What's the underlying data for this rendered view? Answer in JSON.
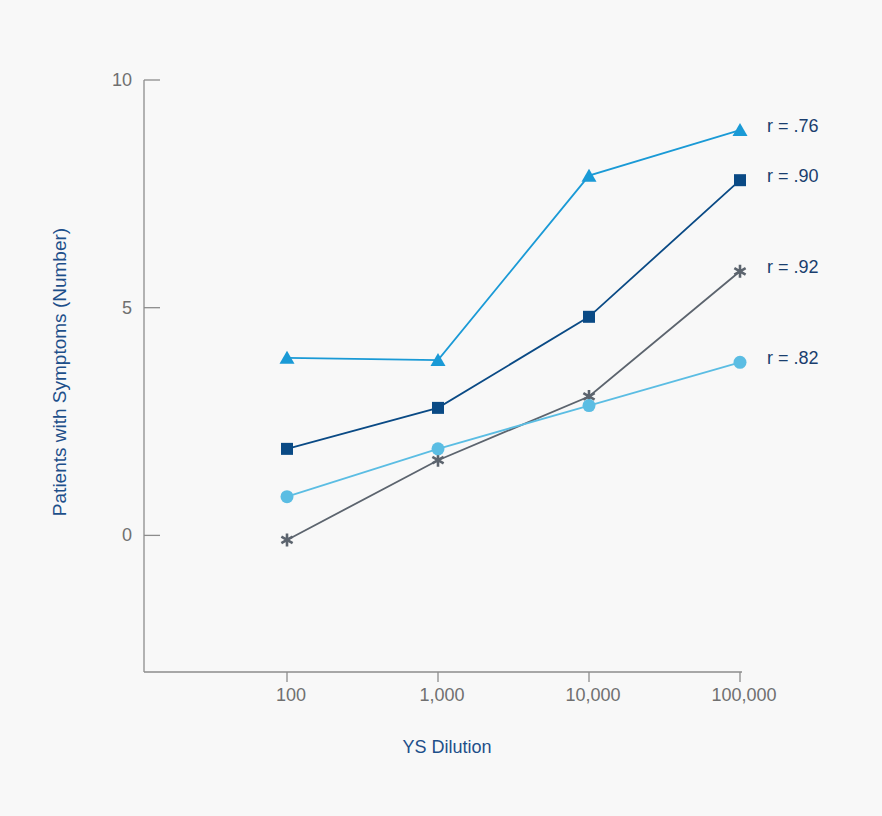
{
  "chart_data": {
    "type": "line",
    "x_label": "YS Dilution",
    "y_label": "Patients with Symptoms (Number)",
    "categories": [
      "100",
      "1,000",
      "10,000",
      "100,000"
    ],
    "ylim": [
      -3,
      10
    ],
    "yticks": [
      0,
      5,
      10
    ],
    "grid": false,
    "series": [
      {
        "name": "r = .76",
        "color": "#1a9ad6",
        "marker": "triangle",
        "values": [
          3.9,
          3.85,
          7.9,
          8.9
        ]
      },
      {
        "name": "r = .90",
        "color": "#0a4a85",
        "marker": "square",
        "values": [
          1.9,
          2.8,
          4.8,
          7.8
        ]
      },
      {
        "name": "r = .92",
        "color": "#5c646e",
        "marker": "asterisk",
        "values": [
          -0.1,
          1.65,
          3.05,
          5.8
        ]
      },
      {
        "name": "r = .82",
        "color": "#5bbde3",
        "marker": "circle",
        "values": [
          0.85,
          1.9,
          2.85,
          3.8
        ]
      }
    ]
  }
}
